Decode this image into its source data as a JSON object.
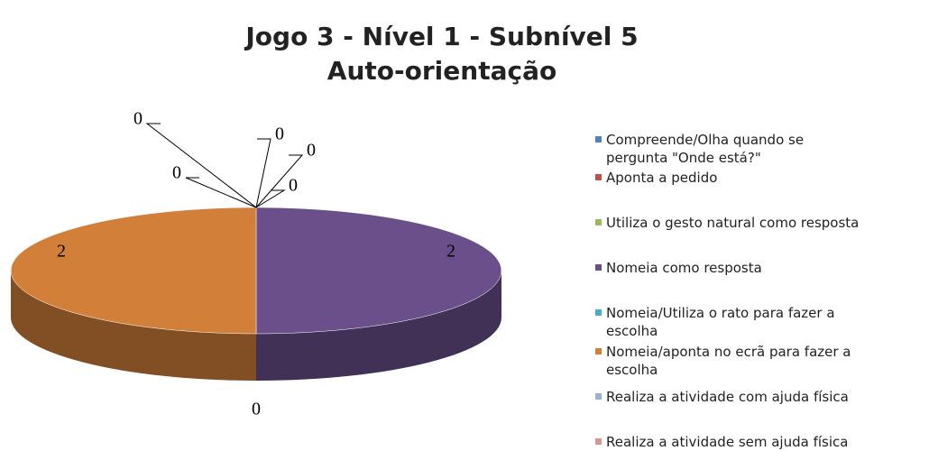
{
  "chart_data": {
    "type": "pie3d",
    "title": "Jogo 3 - Nível 1 - Subnível 5",
    "subtitle": "Auto-orientação",
    "categories": [
      "Compreende/Olha quando se pergunta \"Onde está?\"",
      "Aponta a pedido",
      "Utiliza o gesto natural como resposta",
      "Nomeia como resposta",
      "Nomeia/Utiliza o rato para fazer a escolha",
      "Nomeia/aponta no ecrã para fazer a escolha",
      "Realiza a atividade com ajuda física",
      "Realiza a atividade sem ajuda física"
    ],
    "values": [
      0,
      0,
      0,
      2,
      0,
      2,
      0,
      0
    ],
    "colors": [
      "#4f81bd",
      "#c0504d",
      "#9bbb59",
      "#6b4f8a",
      "#4bacc6",
      "#d27f3a",
      "#95b3d7",
      "#d99694"
    ],
    "legend": "right"
  }
}
